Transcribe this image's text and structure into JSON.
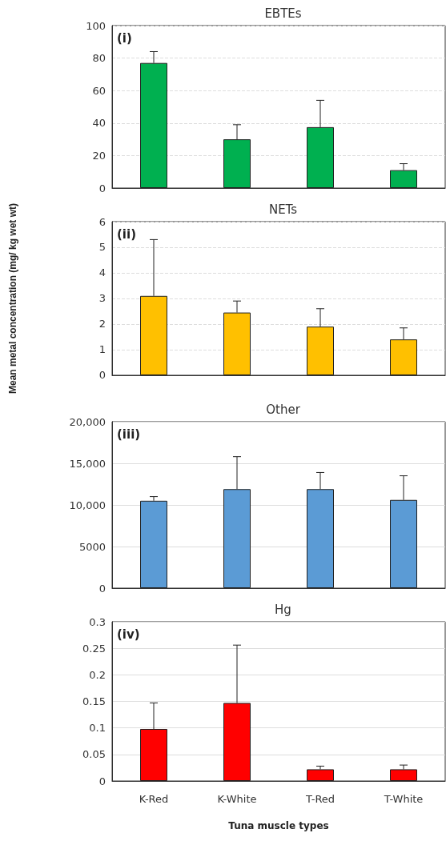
{
  "chart_data": [
    {
      "type": "bar",
      "title": "EBTEs",
      "categories": [
        null,
        null,
        null,
        null
      ],
      "values": [
        77,
        30,
        37.5,
        11
      ],
      "errors": [
        [
          77,
          84
        ],
        [
          30,
          39
        ],
        [
          37.5,
          54
        ],
        [
          11,
          15
        ]
      ],
      "color": "#00b050",
      "ylim": [
        0,
        100
      ],
      "yticks": [
        0,
        20,
        40,
        60,
        80,
        100
      ],
      "grid": "y",
      "tick_labels": "y",
      "annotations": [
        "(i)"
      ]
    },
    {
      "type": "bar",
      "title": "NETs",
      "ylabel": "Mean metal concentration (mg/ kg wet wt)",
      "categories": [
        null,
        null,
        null,
        null
      ],
      "values": [
        3.1,
        2.45,
        1.9,
        1.4
      ],
      "errors": [
        [
          3.1,
          5.3
        ],
        [
          2.45,
          2.9
        ],
        [
          1.9,
          2.6
        ],
        [
          1.4,
          1.85
        ]
      ],
      "color": "#ffc000",
      "ylim": [
        0,
        6
      ],
      "yticks": [
        0,
        1,
        2,
        3,
        4,
        5,
        6
      ],
      "grid": "y",
      "tick_labels": "y",
      "annotations": [
        "(ii)"
      ]
    },
    {
      "type": "bar",
      "title": "Other",
      "categories": [
        null,
        null,
        null,
        null
      ],
      "values": [
        10500,
        11900,
        11900,
        10600
      ],
      "errors": [
        [
          10500,
          11000
        ],
        [
          11900,
          15800
        ],
        [
          11900,
          13900
        ],
        [
          10600,
          13500
        ]
      ],
      "color": "#5b9bd5",
      "ylim": [
        0,
        20000
      ],
      "yticks": [
        0,
        5000,
        {
          "value": 10000,
          "label": "10,000"
        },
        {
          "value": 15000,
          "label": "15,000"
        },
        {
          "value": 20000,
          "label": "20,000"
        }
      ],
      "grid": "y",
      "tick_labels": "y",
      "annotations": [
        "(iii)"
      ]
    },
    {
      "type": "bar",
      "title": "Hg",
      "xlabel": "Tuna muscle types",
      "categories": [
        "K-Red",
        "K-White",
        "T-Red",
        "T-White"
      ],
      "values": [
        0.098,
        0.147,
        0.022,
        0.022
      ],
      "errors": [
        [
          0.098,
          0.147
        ],
        [
          0.147,
          0.256
        ],
        [
          0.022,
          0.028
        ],
        [
          0.022,
          0.03
        ]
      ],
      "color": "#ff0000",
      "ylim": [
        0,
        0.3
      ],
      "yticks": [
        0,
        0.05,
        0.1,
        0.15,
        0.2,
        0.25,
        0.3
      ],
      "grid": "y",
      "annotations": [
        "(iv)"
      ]
    }
  ]
}
